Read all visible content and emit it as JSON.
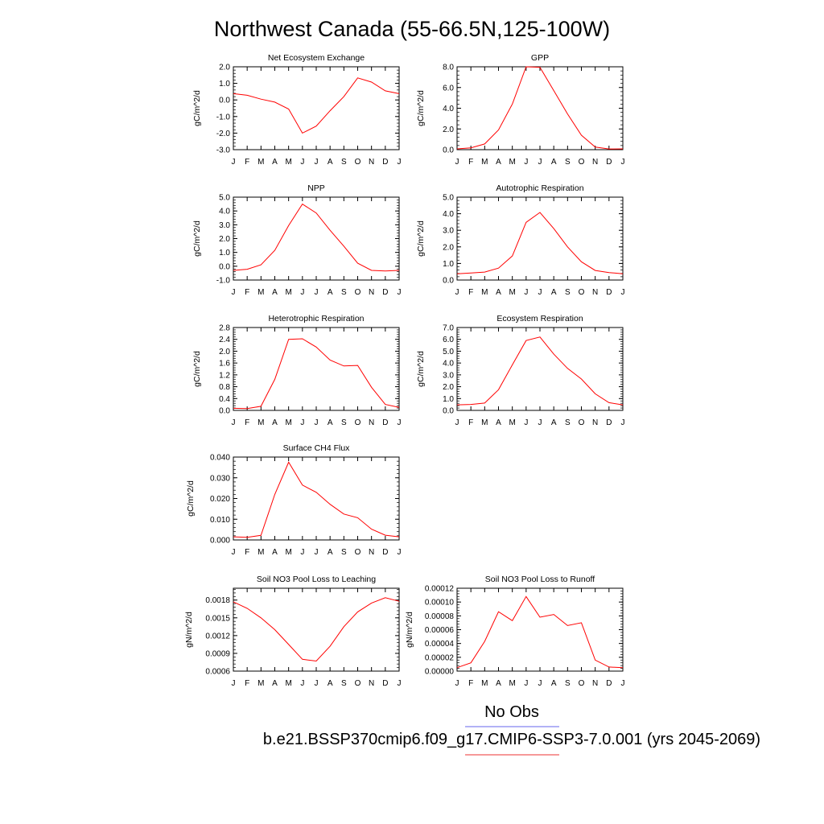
{
  "title": "Northwest Canada (55-66.5N,125-100W)",
  "legend": {
    "obs_label": "No Obs",
    "obs_color": "#6666ee",
    "model_label": "b.e21.BSSP370cmip6.f09_g17.CMIP6-SSP3-7.0.001 (yrs 2045-2069)",
    "model_color": "#ee3333"
  },
  "line_color": "#ff0000",
  "chart_data": [
    {
      "type": "line",
      "title": "Net Ecosystem Exchange",
      "ylabel": "gC/m^2/d",
      "categories": [
        "J",
        "F",
        "M",
        "A",
        "M",
        "J",
        "J",
        "A",
        "S",
        "O",
        "N",
        "D",
        "J"
      ],
      "ylim": [
        -3.0,
        2.0
      ],
      "yticks": [
        "-3.0",
        "-2.0",
        "-1.0",
        "0.0",
        "1.0",
        "2.0"
      ],
      "values": [
        0.38,
        0.28,
        0.05,
        -0.13,
        -0.55,
        -2.0,
        -1.58,
        -0.65,
        0.2,
        1.33,
        1.08,
        0.55,
        0.38
      ]
    },
    {
      "type": "line",
      "title": "GPP",
      "ylabel": "gC/m^2/d",
      "categories": [
        "J",
        "F",
        "M",
        "A",
        "M",
        "J",
        "J",
        "A",
        "S",
        "O",
        "N",
        "D",
        "J"
      ],
      "ylim": [
        0.0,
        8.0
      ],
      "yticks": [
        "0.0",
        "2.0",
        "4.0",
        "6.0",
        "8.0"
      ],
      "values": [
        0.08,
        0.18,
        0.55,
        1.9,
        4.4,
        8.0,
        7.95,
        5.7,
        3.45,
        1.4,
        0.25,
        0.07,
        0.08
      ]
    },
    {
      "type": "line",
      "title": "NPP",
      "ylabel": "gC/m^2/d",
      "categories": [
        "J",
        "F",
        "M",
        "A",
        "M",
        "J",
        "J",
        "A",
        "S",
        "O",
        "N",
        "D",
        "J"
      ],
      "ylim": [
        -1.0,
        5.0
      ],
      "yticks": [
        "-1.0",
        "0.0",
        "1.0",
        "2.0",
        "3.0",
        "4.0",
        "5.0"
      ],
      "values": [
        -0.3,
        -0.22,
        0.1,
        1.15,
        2.95,
        4.5,
        3.85,
        2.6,
        1.45,
        0.22,
        -0.3,
        -0.35,
        -0.3
      ]
    },
    {
      "type": "line",
      "title": "Autotrophic Respiration",
      "ylabel": "gC/m^2/d",
      "categories": [
        "J",
        "F",
        "M",
        "A",
        "M",
        "J",
        "J",
        "A",
        "S",
        "O",
        "N",
        "D",
        "J"
      ],
      "ylim": [
        0.0,
        5.0
      ],
      "yticks": [
        "0.0",
        "1.0",
        "2.0",
        "3.0",
        "4.0",
        "5.0"
      ],
      "values": [
        0.38,
        0.42,
        0.48,
        0.72,
        1.45,
        3.48,
        4.08,
        3.1,
        2.0,
        1.1,
        0.58,
        0.45,
        0.38
      ]
    },
    {
      "type": "line",
      "title": "Heterotrophic Respiration",
      "ylabel": "gC/m^2/d",
      "categories": [
        "J",
        "F",
        "M",
        "A",
        "M",
        "J",
        "J",
        "A",
        "S",
        "O",
        "N",
        "D",
        "J"
      ],
      "ylim": [
        0.0,
        2.8
      ],
      "yticks": [
        "0.0",
        "0.4",
        "0.8",
        "1.2",
        "1.6",
        "2.0",
        "2.4",
        "2.8"
      ],
      "values": [
        0.07,
        0.06,
        0.14,
        1.05,
        2.4,
        2.42,
        2.14,
        1.7,
        1.5,
        1.52,
        0.78,
        0.2,
        0.1
      ]
    },
    {
      "type": "line",
      "title": "Ecosystem Respiration",
      "ylabel": "gC/m^2/d",
      "categories": [
        "J",
        "F",
        "M",
        "A",
        "M",
        "J",
        "J",
        "A",
        "S",
        "O",
        "N",
        "D",
        "J"
      ],
      "ylim": [
        0.0,
        7.0
      ],
      "yticks": [
        "0.0",
        "1.0",
        "2.0",
        "3.0",
        "4.0",
        "5.0",
        "6.0",
        "7.0"
      ],
      "values": [
        0.47,
        0.5,
        0.62,
        1.75,
        3.85,
        5.9,
        6.2,
        4.75,
        3.55,
        2.65,
        1.4,
        0.65,
        0.47
      ]
    },
    {
      "type": "line",
      "title": "Surface CH4 Flux",
      "ylabel": "gC/m^2/d",
      "categories": [
        "J",
        "F",
        "M",
        "A",
        "M",
        "J",
        "J",
        "A",
        "S",
        "O",
        "N",
        "D",
        "J"
      ],
      "ylim": [
        0.0,
        0.04
      ],
      "yticks": [
        "0.000",
        "0.010",
        "0.020",
        "0.030",
        "0.040"
      ],
      "values": [
        0.0015,
        0.0013,
        0.0022,
        0.022,
        0.0375,
        0.0265,
        0.023,
        0.0172,
        0.0125,
        0.0107,
        0.0052,
        0.0023,
        0.0015
      ]
    },
    {
      "type": "line",
      "title": "Soil NO3 Pool Loss to Leaching",
      "ylabel": "gN/m^2/d",
      "categories": [
        "J",
        "F",
        "M",
        "A",
        "M",
        "J",
        "J",
        "A",
        "S",
        "O",
        "N",
        "D",
        "J"
      ],
      "ylim": [
        0.0006,
        0.002
      ],
      "yticks": [
        "0.0006",
        "0.0009",
        "0.0012",
        "0.0015",
        "0.0018"
      ],
      "values": [
        0.00177,
        0.00166,
        0.0015,
        0.0013,
        0.00105,
        0.0008,
        0.00077,
        0.00102,
        0.00135,
        0.0016,
        0.00175,
        0.00184,
        0.00178
      ]
    },
    {
      "type": "line",
      "title": "Soil NO3 Pool Loss to Runoff",
      "ylabel": "gN/m^2/d",
      "categories": [
        "J",
        "F",
        "M",
        "A",
        "M",
        "J",
        "J",
        "A",
        "S",
        "O",
        "N",
        "D",
        "J"
      ],
      "ylim": [
        0.0,
        0.00012
      ],
      "yticks": [
        "0.00000",
        "0.00002",
        "0.00004",
        "0.00006",
        "0.00008",
        "0.00010",
        "0.00012"
      ],
      "values": [
        5e-06,
        1.2e-05,
        4.3e-05,
        8.6e-05,
        7.3e-05,
        0.000108,
        7.8e-05,
        8.2e-05,
        6.6e-05,
        7e-05,
        1.6e-05,
        6e-06,
        5e-06
      ]
    }
  ]
}
